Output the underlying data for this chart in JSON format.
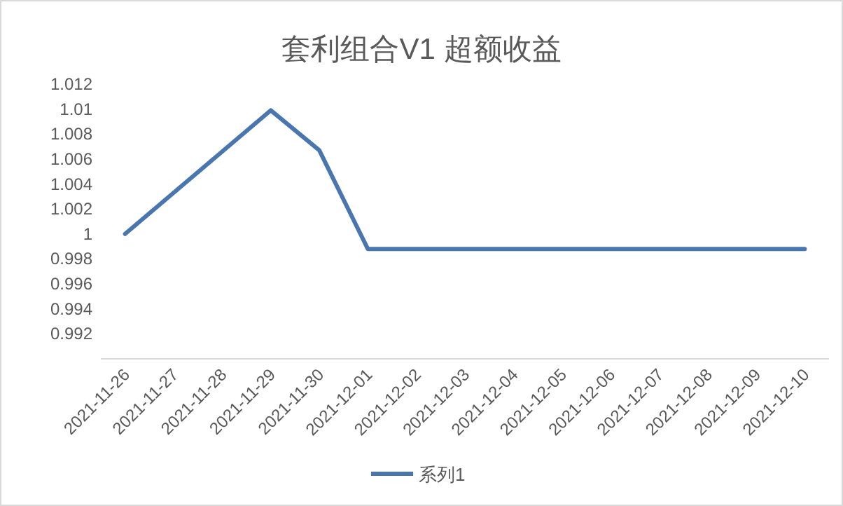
{
  "chart_data": {
    "type": "line",
    "title": "套利组合V1 超额收益",
    "categories": [
      "2021-11-26",
      "2021-11-27",
      "2021-11-28",
      "2021-11-29",
      "2021-11-30",
      "2021-12-01",
      "2021-12-02",
      "2021-12-03",
      "2021-12-04",
      "2021-12-05",
      "2021-12-06",
      "2021-12-07",
      "2021-12-08",
      "2021-12-09",
      "2021-12-10"
    ],
    "series": [
      {
        "name": "系列1",
        "color": "#4a76b0",
        "values": [
          1.0,
          1.0033,
          1.0066,
          1.0099,
          1.0067,
          0.9988,
          0.9988,
          0.9988,
          0.9988,
          0.9988,
          0.9988,
          0.9988,
          0.9988,
          0.9988,
          0.9988
        ]
      }
    ],
    "ylim": [
      0.99,
      1.012
    ],
    "yticks": [
      0.992,
      0.994,
      0.996,
      0.998,
      1,
      1.002,
      1.004,
      1.006,
      1.008,
      1.01,
      1.012
    ],
    "legend": "bottom",
    "grid": false,
    "marker": "none",
    "line_style": "solid"
  }
}
